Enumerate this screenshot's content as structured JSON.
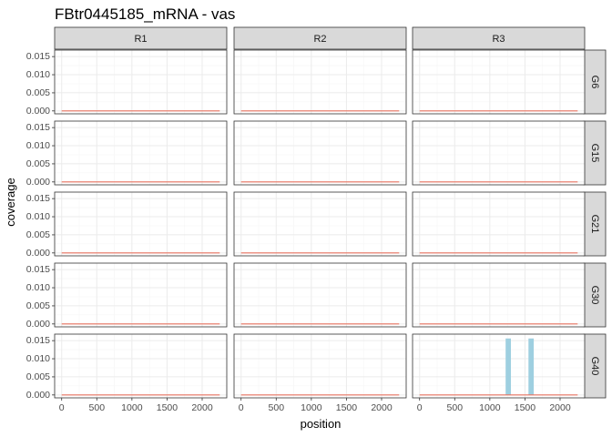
{
  "chart_data": {
    "type": "bar",
    "title": "FBtr0445185_mRNA - vas",
    "xlabel": "position",
    "ylabel": "coverage",
    "xlim": [
      -100,
      2350
    ],
    "ylim": [
      -0.0008,
      0.0168
    ],
    "x_ticks": [
      0,
      500,
      1000,
      1500,
      2000
    ],
    "y_ticks": [
      0.0,
      0.005,
      0.01,
      0.015
    ],
    "y_tick_labels": [
      "0.000",
      "0.005",
      "0.010",
      "0.015"
    ],
    "grid": true,
    "columns": [
      "R1",
      "R2",
      "R3"
    ],
    "rows": [
      "G6",
      "G15",
      "G21",
      "G30",
      "G40"
    ],
    "line_span": [
      0,
      2250
    ],
    "colors": {
      "bar": "#9ecfe0",
      "line": "#e8735f",
      "strip": "#d9d9d9",
      "grid_major": "#ebebeb",
      "grid_minor": "#f5f5f5",
      "panel_border": "#333333"
    },
    "panels": [
      {
        "row": "G6",
        "col": "R1",
        "bars": []
      },
      {
        "row": "G6",
        "col": "R2",
        "bars": []
      },
      {
        "row": "G6",
        "col": "R3",
        "bars": []
      },
      {
        "row": "G15",
        "col": "R1",
        "bars": []
      },
      {
        "row": "G15",
        "col": "R2",
        "bars": []
      },
      {
        "row": "G15",
        "col": "R3",
        "bars": []
      },
      {
        "row": "G21",
        "col": "R1",
        "bars": []
      },
      {
        "row": "G21",
        "col": "R2",
        "bars": []
      },
      {
        "row": "G21",
        "col": "R3",
        "bars": []
      },
      {
        "row": "G30",
        "col": "R1",
        "bars": []
      },
      {
        "row": "G30",
        "col": "R2",
        "bars": []
      },
      {
        "row": "G30",
        "col": "R3",
        "bars": []
      },
      {
        "row": "G40",
        "col": "R1",
        "bars": []
      },
      {
        "row": "G40",
        "col": "R2",
        "bars": []
      },
      {
        "row": "G40",
        "col": "R3",
        "bars": [
          {
            "x0": 1225,
            "x1": 1300,
            "value": 0.0156
          },
          {
            "x0": 1550,
            "x1": 1625,
            "value": 0.0156
          }
        ]
      }
    ]
  }
}
